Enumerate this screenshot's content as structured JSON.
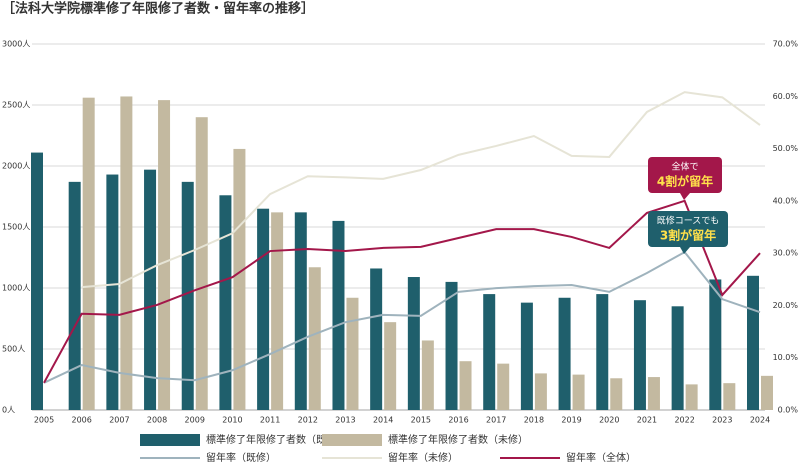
{
  "chart_data": {
    "type": "bar",
    "title": "［法科大学院標準修了年限修了者数・留年率の推移］",
    "categories": [
      "2005",
      "2006",
      "2007",
      "2008",
      "2009",
      "2010",
      "2011",
      "2012",
      "2013",
      "2014",
      "2015",
      "2016",
      "2017",
      "2018",
      "2019",
      "2020",
      "2021",
      "2022",
      "2023",
      "2024"
    ],
    "series": [
      {
        "name": "標準修了年限修了者数（既修）",
        "type": "bar",
        "color": "#1f5f6c",
        "values": [
          2110,
          1870,
          1930,
          1970,
          1870,
          1760,
          1650,
          1620,
          1550,
          1160,
          1090,
          1050,
          950,
          880,
          920,
          950,
          900,
          850,
          1070,
          1100
        ]
      },
      {
        "name": "標準修了年限修了者数（未修）",
        "type": "bar",
        "color": "#c3b9a0",
        "values": [
          null,
          2560,
          2570,
          2540,
          2400,
          2140,
          1620,
          1170,
          920,
          720,
          570,
          400,
          380,
          300,
          290,
          260,
          270,
          210,
          220,
          280
        ]
      },
      {
        "name": "留年率（既修）",
        "type": "line",
        "axis": "y2",
        "color": "#9fb3bd",
        "values": [
          5.2,
          8.6,
          7.1,
          6.1,
          5.7,
          7.6,
          10.7,
          14.0,
          16.8,
          18.2,
          18.0,
          22.6,
          23.3,
          23.7,
          23.9,
          22.6,
          26.2,
          30.2,
          21.2,
          18.7
        ]
      },
      {
        "name": "留年率（未修）",
        "type": "line",
        "axis": "y2",
        "color": "#e6e4d6",
        "values": [
          null,
          23.5,
          24.1,
          27.7,
          30.6,
          33.8,
          41.3,
          44.7,
          44.5,
          44.2,
          45.9,
          48.8,
          50.5,
          52.4,
          48.6,
          48.4,
          57.0,
          60.8,
          59.8,
          54.5
        ]
      },
      {
        "name": "留年率（全体）",
        "type": "line",
        "axis": "y2",
        "color": "#a3174a",
        "values": [
          5.2,
          18.4,
          18.2,
          20.1,
          22.9,
          25.4,
          30.4,
          30.8,
          30.4,
          31.0,
          31.2,
          32.9,
          34.6,
          34.6,
          33.1,
          31.0,
          37.7,
          40.0,
          22.0,
          30.0
        ]
      }
    ],
    "ylim": [
      0,
      3000
    ],
    "yticks": [
      {
        "value": 0,
        "label": "0人"
      },
      {
        "value": 500,
        "label": "500人"
      },
      {
        "value": 1000,
        "label": "1000人"
      },
      {
        "value": 1500,
        "label": "1500人"
      },
      {
        "value": 2000,
        "label": "2000人"
      },
      {
        "value": 2500,
        "label": "2500人"
      },
      {
        "value": 3000,
        "label": "3000人"
      }
    ],
    "y2lim": [
      0,
      70
    ],
    "y2ticks": [
      {
        "value": 0,
        "label": "0.0%"
      },
      {
        "value": 10,
        "label": "10.0%"
      },
      {
        "value": 20,
        "label": "20.0%"
      },
      {
        "value": 30,
        "label": "30.0%"
      },
      {
        "value": 40,
        "label": "40.0%"
      },
      {
        "value": 50,
        "label": "50.0%"
      },
      {
        "value": 60,
        "label": "60.0%"
      },
      {
        "value": 70,
        "label": "70.0%"
      }
    ],
    "grid": true,
    "annotations": [
      [
        "全体で",
        "4割が留年"
      ],
      [
        "既修コースでも",
        "3割が留年"
      ]
    ]
  }
}
